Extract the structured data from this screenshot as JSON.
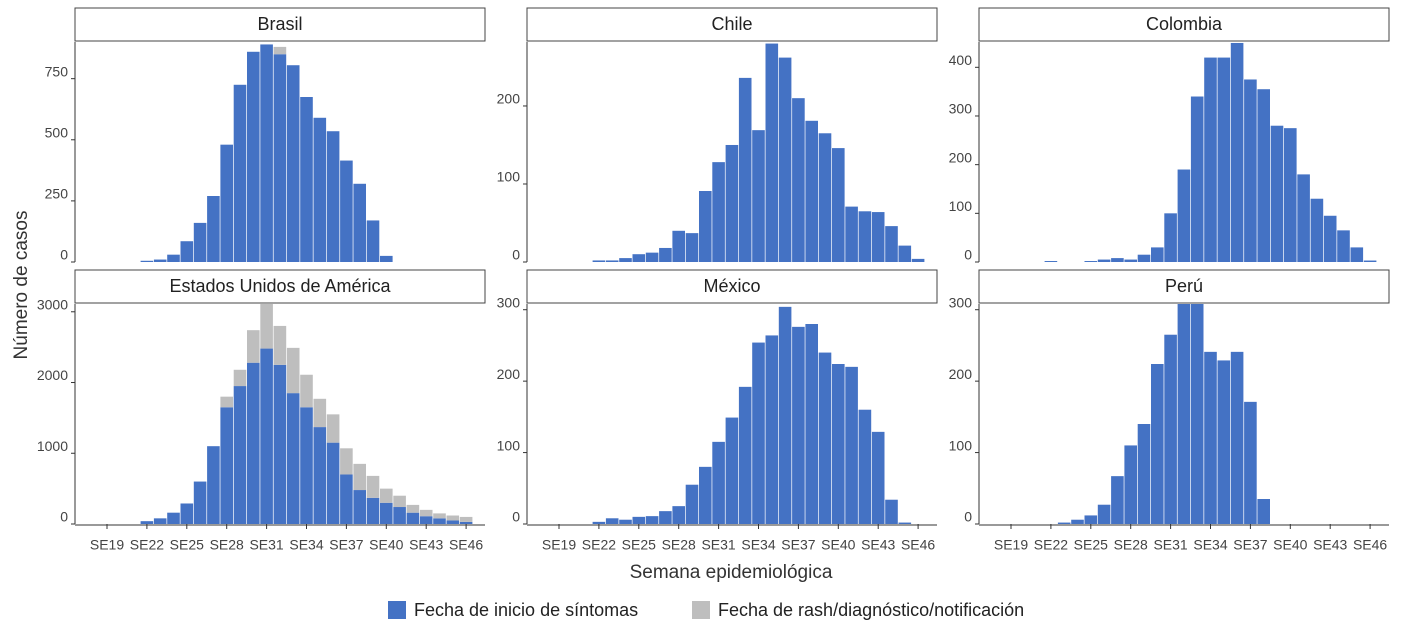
{
  "xlabel": "Semana epidemiológica",
  "ylabel": "Número de casos",
  "chart_data": [
    {
      "type": "bar",
      "title": "Brasil",
      "categories": [
        "SE19",
        null,
        null,
        "SE22",
        null,
        null,
        "SE25",
        null,
        null,
        "SE28",
        null,
        null,
        "SE31",
        null,
        null,
        "SE34",
        null,
        null,
        "SE37",
        null,
        null,
        "SE40",
        null,
        null,
        "SE43",
        null,
        null,
        "SE46"
      ],
      "series": [
        {
          "name": "Fecha de inicio de síntomas",
          "color": "#4472c4",
          "values": [
            null,
            null,
            null,
            5,
            10,
            30,
            85,
            160,
            270,
            480,
            725,
            860,
            890,
            850,
            805,
            675,
            590,
            535,
            415,
            320,
            170,
            25,
            null,
            null,
            null,
            null,
            null,
            null
          ]
        },
        {
          "name": "Fecha de rash/diagnóstico/notificación",
          "color": "#bebebe",
          "values": [
            null,
            null,
            null,
            null,
            null,
            null,
            null,
            null,
            null,
            null,
            null,
            null,
            null,
            30,
            null,
            null,
            null,
            null,
            null,
            null,
            null,
            null,
            null,
            null,
            null,
            null,
            null,
            null
          ]
        }
      ],
      "ylim": [
        0,
        900
      ],
      "yticks": [
        0,
        250,
        500,
        750
      ]
    },
    {
      "type": "bar",
      "title": "Chile",
      "categories": [
        "SE19",
        null,
        null,
        "SE22",
        null,
        null,
        "SE25",
        null,
        null,
        "SE28",
        null,
        null,
        "SE31",
        null,
        null,
        "SE34",
        null,
        null,
        "SE37",
        null,
        null,
        "SE40",
        null,
        null,
        "SE43",
        null,
        null,
        "SE46"
      ],
      "series": [
        {
          "name": "Fecha de inicio de síntomas",
          "color": "#4472c4",
          "values": [
            null,
            null,
            null,
            2,
            2,
            5,
            10,
            12,
            18,
            40,
            37,
            91,
            128,
            150,
            236,
            169,
            280,
            262,
            210,
            181,
            165,
            146,
            71,
            65,
            64,
            46,
            21,
            4
          ]
        },
        {
          "name": "Fecha de rash/diagnóstico/notificación",
          "color": "#bebebe",
          "values": [
            null,
            null,
            null,
            null,
            null,
            null,
            null,
            null,
            null,
            null,
            null,
            null,
            null,
            null,
            null,
            null,
            null,
            null,
            null,
            null,
            null,
            null,
            null,
            null,
            null,
            null,
            null,
            null
          ]
        }
      ],
      "ylim": [
        0,
        282
      ],
      "yticks": [
        0,
        100,
        200
      ]
    },
    {
      "type": "bar",
      "title": "Colombia",
      "categories": [
        "SE19",
        null,
        null,
        "SE22",
        null,
        null,
        "SE25",
        null,
        null,
        "SE28",
        null,
        null,
        "SE31",
        null,
        null,
        "SE34",
        null,
        null,
        "SE37",
        null,
        null,
        "SE40",
        null,
        null,
        "SE43",
        null,
        null,
        "SE46"
      ],
      "series": [
        {
          "name": "Fecha de inicio de síntomas",
          "color": "#4472c4",
          "values": [
            null,
            null,
            null,
            2,
            null,
            null,
            2,
            5,
            8,
            5,
            15,
            30,
            100,
            190,
            340,
            420,
            420,
            450,
            375,
            355,
            280,
            275,
            180,
            130,
            95,
            65,
            30,
            3
          ]
        },
        {
          "name": "Fecha de rash/diagnóstico/notificación",
          "color": "#bebebe",
          "values": [
            null,
            null,
            null,
            null,
            null,
            null,
            null,
            null,
            null,
            null,
            null,
            null,
            null,
            null,
            null,
            null,
            null,
            null,
            null,
            null,
            null,
            null,
            null,
            null,
            null,
            null,
            null,
            null
          ]
        }
      ],
      "ylim": [
        0,
        452
      ],
      "yticks": [
        0,
        100,
        200,
        300,
        400
      ]
    },
    {
      "type": "bar",
      "title": "Estados Unidos de América",
      "categories": [
        "SE19",
        null,
        null,
        "SE22",
        null,
        null,
        "SE25",
        null,
        null,
        "SE28",
        null,
        null,
        "SE31",
        null,
        null,
        "SE34",
        null,
        null,
        "SE37",
        null,
        null,
        "SE40",
        null,
        null,
        "SE43",
        null,
        null,
        "SE46"
      ],
      "series": [
        {
          "name": "Fecha de inicio de síntomas",
          "color": "#4472c4",
          "values": [
            null,
            null,
            null,
            40,
            80,
            160,
            290,
            600,
            1100,
            1650,
            1950,
            2280,
            2480,
            2250,
            1850,
            1650,
            1370,
            1150,
            700,
            480,
            370,
            300,
            240,
            160,
            110,
            80,
            50,
            30
          ]
        },
        {
          "name": "Fecha de rash/diagnóstico/notificación",
          "color": "#bebebe",
          "values": [
            null,
            null,
            null,
            null,
            null,
            null,
            null,
            null,
            null,
            150,
            230,
            460,
            630,
            550,
            640,
            460,
            400,
            400,
            370,
            370,
            310,
            200,
            160,
            110,
            90,
            70,
            70,
            70
          ]
        }
      ],
      "ylim": [
        0,
        3110
      ],
      "yticks": [
        0,
        1000,
        2000,
        3000
      ]
    },
    {
      "type": "bar",
      "title": "México",
      "categories": [
        "SE19",
        null,
        null,
        "SE22",
        null,
        null,
        "SE25",
        null,
        null,
        "SE28",
        null,
        null,
        "SE31",
        null,
        null,
        "SE34",
        null,
        null,
        "SE37",
        null,
        null,
        "SE40",
        null,
        null,
        "SE43",
        null,
        null,
        "SE46"
      ],
      "series": [
        {
          "name": "Fecha de inicio de síntomas",
          "color": "#4472c4",
          "values": [
            null,
            null,
            null,
            3,
            8,
            6,
            10,
            11,
            18,
            25,
            55,
            80,
            115,
            149,
            192,
            254,
            264,
            304,
            276,
            280,
            240,
            224,
            220,
            160,
            129,
            34,
            2,
            null
          ]
        },
        {
          "name": "Fecha de rash/diagnóstico/notificación",
          "color": "#bebebe",
          "values": [
            null,
            null,
            null,
            null,
            null,
            null,
            null,
            null,
            null,
            null,
            null,
            null,
            null,
            null,
            null,
            null,
            null,
            null,
            null,
            null,
            null,
            null,
            null,
            null,
            null,
            null,
            null,
            null
          ]
        }
      ],
      "ylim": [
        0,
        308
      ],
      "yticks": [
        0,
        100,
        200,
        300
      ]
    },
    {
      "type": "bar",
      "title": "Perú",
      "categories": [
        "SE19",
        null,
        null,
        "SE22",
        null,
        null,
        "SE25",
        null,
        null,
        "SE28",
        null,
        null,
        "SE31",
        null,
        null,
        "SE34",
        null,
        null,
        "SE37",
        null,
        null,
        "SE40",
        null,
        null,
        "SE43",
        null,
        null,
        "SE46"
      ],
      "series": [
        {
          "name": "Fecha de inicio de síntomas",
          "color": "#4472c4",
          "values": [
            null,
            null,
            null,
            null,
            2,
            6,
            12,
            27,
            67,
            110,
            140,
            224,
            265,
            308,
            308,
            241,
            229,
            241,
            171,
            35,
            null,
            null,
            null,
            null,
            null,
            null,
            null,
            null
          ]
        },
        {
          "name": "Fecha de rash/diagnóstico/notificación",
          "color": "#bebebe",
          "values": [
            null,
            null,
            null,
            null,
            null,
            null,
            null,
            null,
            null,
            null,
            null,
            null,
            null,
            null,
            null,
            null,
            null,
            null,
            null,
            null,
            null,
            null,
            null,
            null,
            null,
            null,
            null,
            null
          ]
        }
      ],
      "ylim": [
        0,
        308
      ],
      "yticks": [
        0,
        100,
        200,
        300
      ]
    }
  ]
}
